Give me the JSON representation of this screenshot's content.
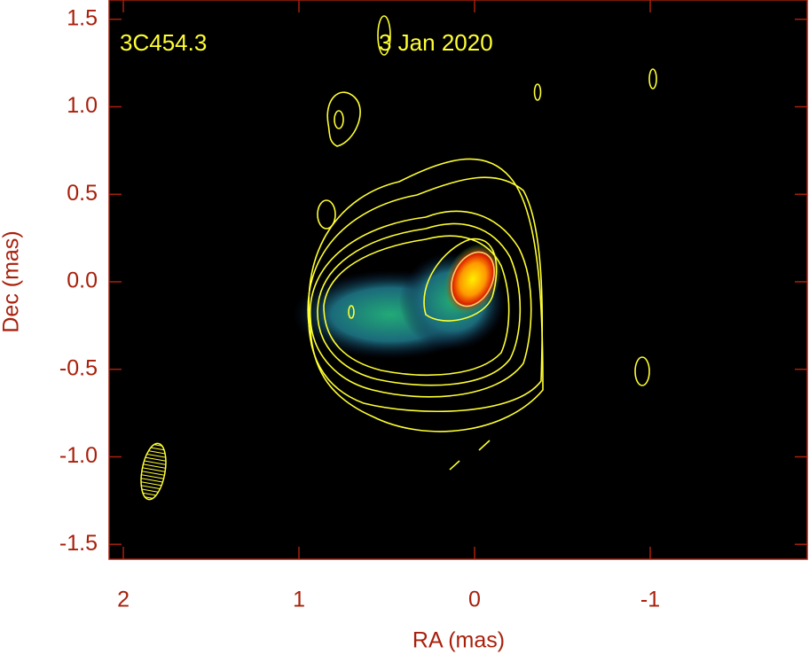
{
  "chart_data": {
    "type": "image",
    "annotations": [
      "3C454.3",
      "3 Jan 2020"
    ],
    "xlabel": "RA (mas)",
    "ylabel": "Dec (mas)",
    "xlim": [
      2.081,
      -1.894
    ],
    "xticks": [
      2,
      1,
      0,
      -1
    ],
    "ylim": [
      -1.585,
      1.61
    ],
    "yticks": [
      1.5,
      {
        "value": 1.0,
        "label": "1.0"
      },
      0.5,
      {
        "value": 0.0,
        "label": "0.0"
      },
      -0.5,
      {
        "value": -1.0,
        "label": "-1.0"
      },
      -1.5
    ],
    "axis_color": "#a8200c",
    "contour_color": "#ffff33"
  }
}
